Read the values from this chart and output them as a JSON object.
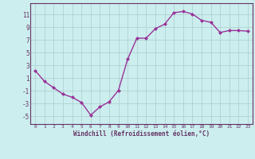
{
  "x": [
    0,
    1,
    2,
    3,
    4,
    5,
    6,
    7,
    8,
    9,
    10,
    11,
    12,
    13,
    14,
    15,
    16,
    17,
    18,
    19,
    20,
    21,
    22,
    23
  ],
  "y": [
    2.2,
    0.5,
    -0.5,
    -1.5,
    -2.0,
    -2.8,
    -4.8,
    -3.5,
    -2.7,
    -0.9,
    4.0,
    7.3,
    7.3,
    8.8,
    9.5,
    11.3,
    11.5,
    11.1,
    10.1,
    9.8,
    8.2,
    8.5,
    8.5,
    8.4
  ],
  "line_color": "#993399",
  "marker": "D",
  "marker_size": 2.0,
  "bg_color": "#cceeee",
  "grid_color": "#aacccc",
  "xlabel": "Windchill (Refroidissement éolien,°C)",
  "yticks": [
    -5,
    -3,
    -1,
    1,
    3,
    5,
    7,
    9,
    11
  ],
  "xticks": [
    0,
    1,
    2,
    3,
    4,
    5,
    6,
    7,
    8,
    9,
    10,
    11,
    12,
    13,
    14,
    15,
    16,
    17,
    18,
    19,
    20,
    21,
    22,
    23
  ],
  "ylim": [
    -6.2,
    12.8
  ],
  "xlim": [
    -0.5,
    23.5
  ],
  "axis_color": "#663366",
  "tick_color": "#663366",
  "label_color": "#663366",
  "linewidth": 1.0
}
